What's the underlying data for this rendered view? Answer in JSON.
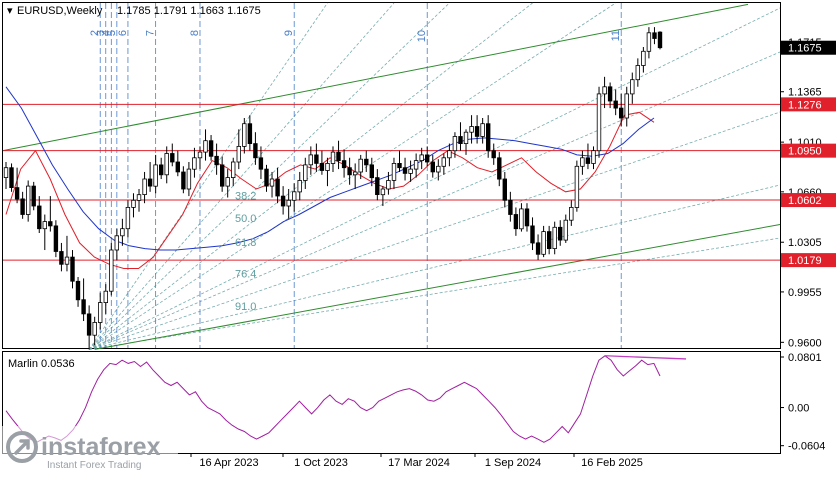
{
  "header": {
    "symbol_label": "EURUSD,Weekly",
    "ohlc_values": "1.1785 1.1791 1.1663 1.1675"
  },
  "chart_data": [
    {
      "type": "candlestick",
      "title": "EURUSD,Weekly",
      "ohlc": {
        "open": 1.1785,
        "high": 1.1791,
        "low": 1.1663,
        "close": 1.1675
      },
      "ylim": [
        0.956,
        1.199
      ],
      "y_ticks": [
        0.96,
        0.9955,
        1.0305,
        1.066,
        1.101,
        1.1365,
        1.1715
      ],
      "x_labels": [
        "16 Apr 2023",
        "1 Oct 2023",
        "17 Mar 2024",
        "1 Sep 2024",
        "16 Feb 2025"
      ],
      "price_levels": [
        {
          "value": 1.1276,
          "label": "1.1276"
        },
        {
          "value": 1.095,
          "label": "1.0950"
        },
        {
          "value": 1.0602,
          "label": "1.0602"
        },
        {
          "value": 1.0179,
          "label": "1.0179"
        }
      ],
      "current_price": {
        "value": 1.1675,
        "label": "1.1675"
      },
      "fibonacci_levels": [
        "38.2",
        "50.0",
        "61.8",
        "76.4",
        "91.0"
      ],
      "time_cycle_labels": [
        "2",
        "3",
        "4",
        "5",
        "6",
        "7",
        "8",
        "9",
        "10",
        "11"
      ],
      "series": [
        {
          "name": "",
          "color": "#e0202a",
          "values": [
            1.05,
            1.082,
            1.095,
            1.075,
            1.05,
            1.03,
            1.02,
            1.015,
            1.012,
            1.012,
            1.02,
            1.035,
            1.05,
            1.072,
            1.088,
            1.083,
            1.075,
            1.068,
            1.072,
            1.08,
            1.085,
            1.082,
            1.09,
            1.085,
            1.078,
            1.072,
            1.068,
            1.07,
            1.078,
            1.088,
            1.095,
            1.09,
            1.083,
            1.08,
            1.085,
            1.09,
            1.08,
            1.072,
            1.066,
            1.068,
            1.08,
            1.098,
            1.12,
            1.122,
            1.115
          ]
        },
        {
          "name": "",
          "color": "#1f35c8",
          "values": [
            1.14,
            1.125,
            1.105,
            1.085,
            1.068,
            1.052,
            1.04,
            1.032,
            1.028,
            1.026,
            1.025,
            1.025,
            1.026,
            1.027,
            1.028,
            1.03,
            1.033,
            1.038,
            1.045,
            1.05,
            1.056,
            1.062,
            1.066,
            1.07,
            1.074,
            1.078,
            1.083,
            1.088,
            1.095,
            1.1,
            1.103,
            1.104,
            1.103,
            1.102,
            1.1,
            1.098,
            1.096,
            1.092,
            1.091,
            1.093,
            1.1,
            1.11,
            1.118
          ]
        }
      ],
      "candles": [
        [
          1.076,
          1.087,
          1.068,
          1.083
        ],
        [
          1.083,
          1.086,
          1.066,
          1.069
        ],
        [
          1.069,
          1.083,
          1.058,
          1.061
        ],
        [
          1.061,
          1.066,
          1.047,
          1.05
        ],
        [
          1.05,
          1.074,
          1.045,
          1.07
        ],
        [
          1.07,
          1.073,
          1.053,
          1.056
        ],
        [
          1.056,
          1.063,
          1.037,
          1.04
        ],
        [
          1.04,
          1.05,
          1.025,
          1.045
        ],
        [
          1.045,
          1.063,
          1.038,
          1.042
        ],
        [
          1.042,
          1.046,
          1.02,
          1.024
        ],
        [
          1.024,
          1.03,
          1.01,
          1.015
        ],
        [
          1.015,
          1.035,
          1.01,
          1.02
        ],
        [
          1.02,
          1.025,
          0.998,
          1.003
        ],
        [
          1.003,
          1.006,
          0.985,
          0.99
        ],
        [
          0.99,
          1.005,
          0.975,
          0.98
        ],
        [
          0.98,
          0.986,
          0.955,
          0.965
        ],
        [
          0.965,
          0.978,
          0.958,
          0.974
        ],
        [
          0.974,
          0.995,
          0.969,
          0.988
        ],
        [
          0.988,
          1.001,
          0.98,
          0.996
        ],
        [
          0.996,
          1.03,
          0.993,
          1.025
        ],
        [
          1.025,
          1.04,
          1.018,
          1.035
        ],
        [
          1.035,
          1.047,
          1.028,
          1.04
        ],
        [
          1.04,
          1.06,
          1.034,
          1.055
        ],
        [
          1.055,
          1.065,
          1.048,
          1.06
        ],
        [
          1.06,
          1.068,
          1.052,
          1.064
        ],
        [
          1.064,
          1.08,
          1.058,
          1.075
        ],
        [
          1.075,
          1.087,
          1.066,
          1.07
        ],
        [
          1.07,
          1.092,
          1.065,
          1.085
        ],
        [
          1.085,
          1.09,
          1.075,
          1.078
        ],
        [
          1.078,
          1.098,
          1.072,
          1.093
        ],
        [
          1.093,
          1.1,
          1.084,
          1.087
        ],
        [
          1.087,
          1.095,
          1.077,
          1.08
        ],
        [
          1.08,
          1.084,
          1.065,
          1.068
        ],
        [
          1.068,
          1.087,
          1.063,
          1.082
        ],
        [
          1.082,
          1.097,
          1.076,
          1.09
        ],
        [
          1.09,
          1.098,
          1.082,
          1.094
        ],
        [
          1.094,
          1.11,
          1.088,
          1.102
        ],
        [
          1.102,
          1.106,
          1.088,
          1.091
        ],
        [
          1.091,
          1.1,
          1.078,
          1.085
        ],
        [
          1.085,
          1.091,
          1.066,
          1.07
        ],
        [
          1.07,
          1.082,
          1.062,
          1.076
        ],
        [
          1.076,
          1.09,
          1.07,
          1.087
        ],
        [
          1.087,
          1.11,
          1.082,
          1.098
        ],
        [
          1.098,
          1.118,
          1.093,
          1.114
        ],
        [
          1.114,
          1.12,
          1.095,
          1.1
        ],
        [
          1.1,
          1.108,
          1.085,
          1.09
        ],
        [
          1.09,
          1.098,
          1.075,
          1.082
        ],
        [
          1.082,
          1.085,
          1.066,
          1.07
        ],
        [
          1.07,
          1.08,
          1.062,
          1.075
        ],
        [
          1.075,
          1.083,
          1.058,
          1.063
        ],
        [
          1.063,
          1.07,
          1.05,
          1.056
        ],
        [
          1.056,
          1.068,
          1.047,
          1.06
        ],
        [
          1.06,
          1.072,
          1.052,
          1.066
        ],
        [
          1.066,
          1.08,
          1.06,
          1.074
        ],
        [
          1.074,
          1.09,
          1.068,
          1.085
        ],
        [
          1.085,
          1.098,
          1.078,
          1.092
        ],
        [
          1.092,
          1.1,
          1.08,
          1.086
        ],
        [
          1.086,
          1.095,
          1.078,
          1.081
        ],
        [
          1.081,
          1.09,
          1.07,
          1.086
        ],
        [
          1.086,
          1.098,
          1.08,
          1.094
        ],
        [
          1.094,
          1.102,
          1.082,
          1.088
        ],
        [
          1.088,
          1.096,
          1.076,
          1.083
        ],
        [
          1.083,
          1.09,
          1.071,
          1.078
        ],
        [
          1.078,
          1.086,
          1.068,
          1.08
        ],
        [
          1.08,
          1.092,
          1.075,
          1.089
        ],
        [
          1.089,
          1.095,
          1.08,
          1.085
        ],
        [
          1.085,
          1.09,
          1.07,
          1.076
        ],
        [
          1.076,
          1.082,
          1.06,
          1.064
        ],
        [
          1.064,
          1.07,
          1.056,
          1.068
        ],
        [
          1.068,
          1.08,
          1.064,
          1.074
        ],
        [
          1.074,
          1.09,
          1.068,
          1.086
        ],
        [
          1.086,
          1.095,
          1.08,
          1.083
        ],
        [
          1.083,
          1.09,
          1.074,
          1.079
        ],
        [
          1.079,
          1.088,
          1.073,
          1.082
        ],
        [
          1.082,
          1.093,
          1.076,
          1.088
        ],
        [
          1.088,
          1.097,
          1.082,
          1.092
        ],
        [
          1.092,
          1.098,
          1.084,
          1.087
        ],
        [
          1.087,
          1.092,
          1.076,
          1.08
        ],
        [
          1.08,
          1.089,
          1.074,
          1.084
        ],
        [
          1.084,
          1.093,
          1.078,
          1.09
        ],
        [
          1.09,
          1.1,
          1.084,
          1.095
        ],
        [
          1.095,
          1.108,
          1.09,
          1.105
        ],
        [
          1.105,
          1.115,
          1.095,
          1.1
        ],
        [
          1.1,
          1.11,
          1.092,
          1.108
        ],
        [
          1.108,
          1.12,
          1.1,
          1.112
        ],
        [
          1.112,
          1.12,
          1.1,
          1.105
        ],
        [
          1.105,
          1.118,
          1.1,
          1.114
        ],
        [
          1.114,
          1.12,
          1.09,
          1.095
        ],
        [
          1.095,
          1.1,
          1.085,
          1.09
        ],
        [
          1.09,
          1.094,
          1.07,
          1.075
        ],
        [
          1.075,
          1.08,
          1.055,
          1.06
        ],
        [
          1.06,
          1.066,
          1.045,
          1.05
        ],
        [
          1.05,
          1.055,
          1.035,
          1.04
        ],
        [
          1.04,
          1.058,
          1.038,
          1.054
        ],
        [
          1.054,
          1.058,
          1.038,
          1.042
        ],
        [
          1.042,
          1.048,
          1.025,
          1.03
        ],
        [
          1.03,
          1.036,
          1.018,
          1.022
        ],
        [
          1.022,
          1.042,
          1.02,
          1.038
        ],
        [
          1.038,
          1.042,
          1.022,
          1.026
        ],
        [
          1.026,
          1.045,
          1.022,
          1.041
        ],
        [
          1.041,
          1.046,
          1.028,
          1.032
        ],
        [
          1.032,
          1.05,
          1.03,
          1.046
        ],
        [
          1.046,
          1.06,
          1.042,
          1.055
        ],
        [
          1.055,
          1.088,
          1.052,
          1.084
        ],
        [
          1.084,
          1.095,
          1.078,
          1.09
        ],
        [
          1.09,
          1.1,
          1.082,
          1.086
        ],
        [
          1.086,
          1.098,
          1.082,
          1.095
        ],
        [
          1.095,
          1.14,
          1.09,
          1.135
        ],
        [
          1.135,
          1.147,
          1.125,
          1.14
        ],
        [
          1.14,
          1.143,
          1.125,
          1.13
        ],
        [
          1.13,
          1.138,
          1.12,
          1.125
        ],
        [
          1.125,
          1.135,
          1.112,
          1.118
        ],
        [
          1.118,
          1.14,
          1.112,
          1.135
        ],
        [
          1.135,
          1.15,
          1.128,
          1.145
        ],
        [
          1.145,
          1.16,
          1.14,
          1.155
        ],
        [
          1.155,
          1.168,
          1.15,
          1.165
        ],
        [
          1.165,
          1.182,
          1.16,
          1.178
        ],
        [
          1.178,
          1.182,
          1.17,
          1.174
        ],
        [
          1.1785,
          1.1791,
          1.1663,
          1.1675
        ]
      ]
    },
    {
      "type": "line",
      "title": "Marlin 0.0536",
      "indicator_name": "Marlin",
      "indicator_value": "0.0536",
      "ylim": [
        -0.072,
        0.088
      ],
      "y_ticks": [
        -0.0604,
        0.0,
        0.0801
      ],
      "y_tick_labels": [
        "-0.0604",
        "0.00",
        "0.0801"
      ],
      "series": [
        {
          "name": "Marlin",
          "color": "#a020a0",
          "values": [
            -0.005,
            -0.018,
            -0.03,
            -0.042,
            -0.05,
            -0.055,
            -0.05,
            -0.045,
            -0.048,
            -0.052,
            -0.045,
            -0.035,
            -0.02,
            0.0,
            0.025,
            0.045,
            0.06,
            0.07,
            0.068,
            0.075,
            0.07,
            0.073,
            0.065,
            0.072,
            0.06,
            0.05,
            0.04,
            0.035,
            0.04,
            0.03,
            0.02,
            0.025,
            0.01,
            0.0,
            -0.005,
            -0.01,
            -0.02,
            -0.028,
            -0.034,
            -0.038,
            -0.045,
            -0.05,
            -0.045,
            -0.04,
            -0.03,
            -0.02,
            -0.01,
            0.0,
            0.01,
            0.0,
            -0.01,
            0.0,
            0.012,
            0.02,
            0.01,
            0.005,
            0.014,
            0.01,
            0.0,
            -0.005,
            0.0,
            0.01,
            0.015,
            0.02,
            0.025,
            0.028,
            0.03,
            0.026,
            0.02,
            0.012,
            0.01,
            0.015,
            0.025,
            0.03,
            0.035,
            0.04,
            0.035,
            0.03,
            0.02,
            0.01,
            0.0,
            -0.012,
            -0.025,
            -0.038,
            -0.045,
            -0.05,
            -0.045,
            -0.05,
            -0.055,
            -0.05,
            -0.04,
            -0.03,
            -0.04,
            -0.025,
            -0.01,
            0.02,
            0.05,
            0.075,
            0.082,
            0.075,
            0.06,
            0.05,
            0.058,
            0.066,
            0.075,
            0.068,
            0.07,
            0.05
          ]
        }
      ],
      "divergence_series": {
        "name": "",
        "color": "#c040c0",
        "values": [
          0.082,
          0.077
        ]
      }
    }
  ],
  "watermark": {
    "brand": "instaforex",
    "tagline": "Instant Forex Trading"
  }
}
